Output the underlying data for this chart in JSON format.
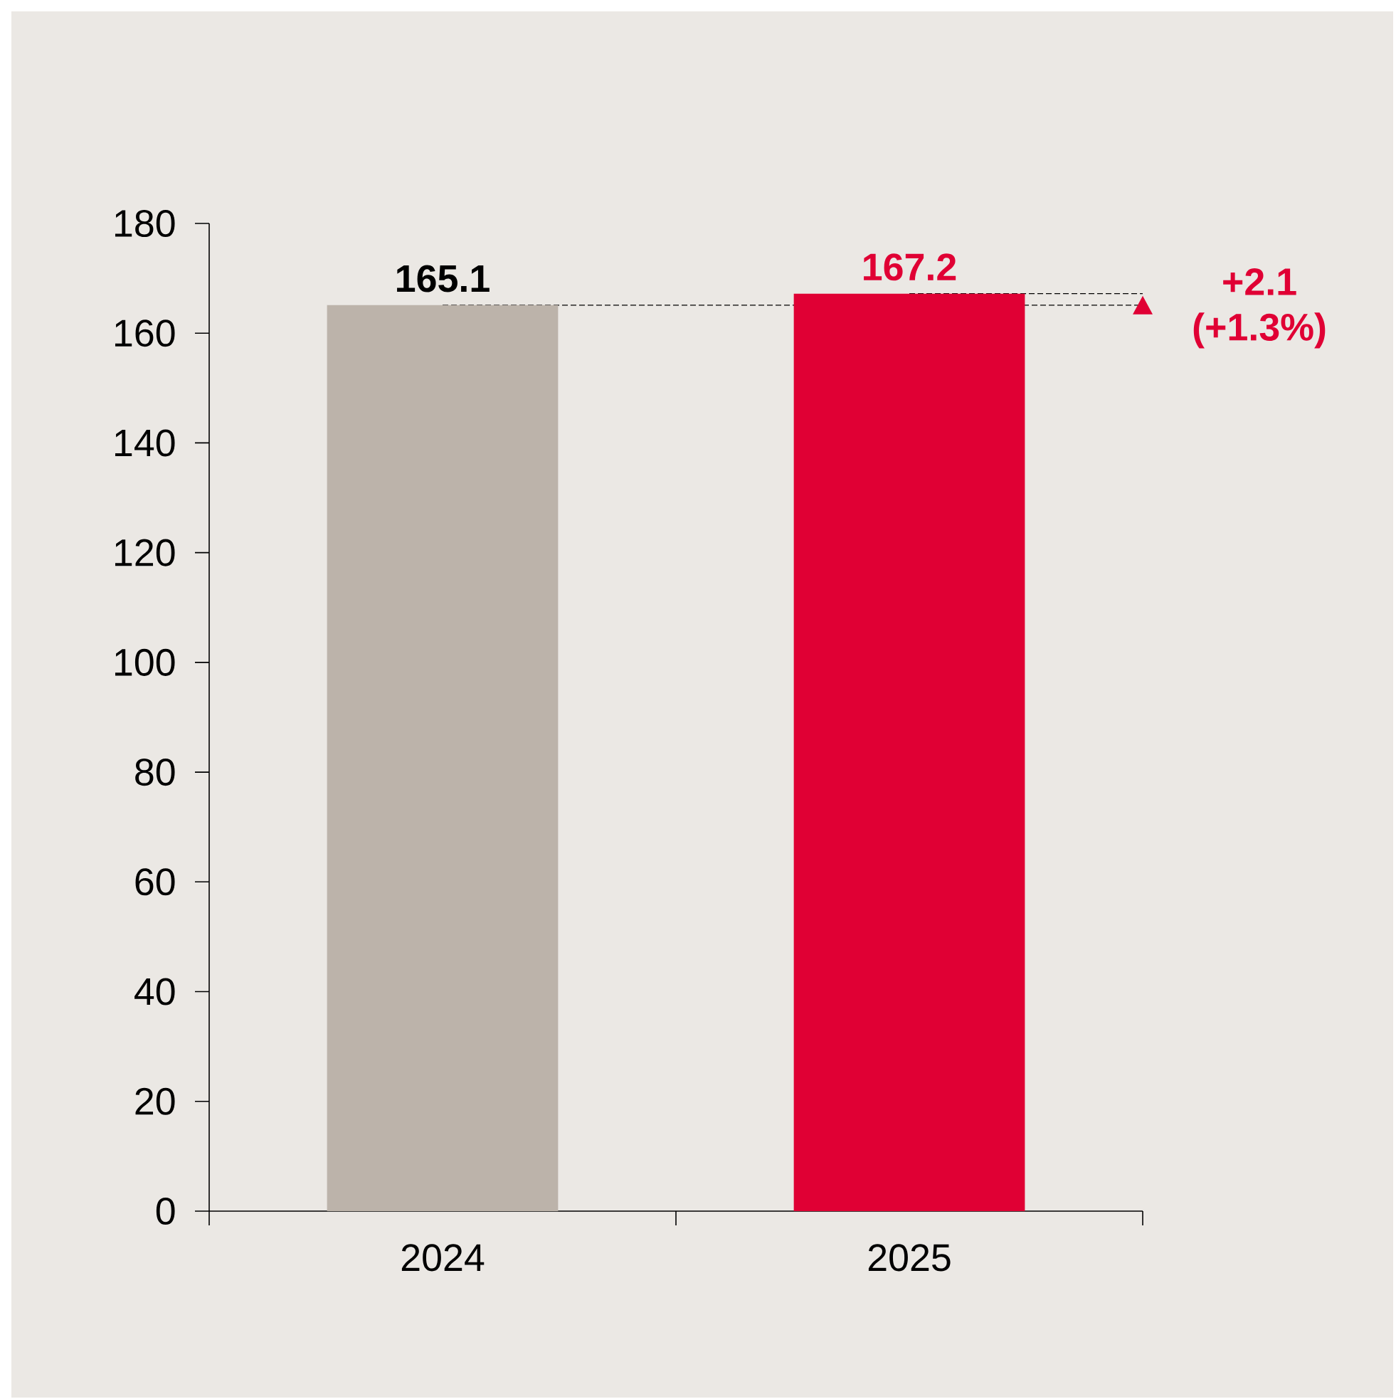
{
  "chart_data": {
    "type": "bar",
    "categories": [
      "2024",
      "2025"
    ],
    "values": [
      165.1,
      167.2
    ],
    "colors": [
      "#bcb3aa",
      "#e00034"
    ],
    "value_labels": [
      "165.1",
      "167.2"
    ],
    "ylim": [
      0,
      180
    ],
    "yticks": [
      0,
      20,
      40,
      60,
      80,
      100,
      120,
      140,
      160,
      180
    ],
    "ref_lines": [
      {
        "axis": "y",
        "value": 165.1,
        "color": "#000000",
        "line_style": "dashed"
      },
      {
        "axis": "y",
        "value": 167.2,
        "color": "#000000",
        "line_style": "dashed"
      }
    ],
    "annotations": [
      "+2.1",
      "(+1.3%)"
    ],
    "grid": false
  }
}
